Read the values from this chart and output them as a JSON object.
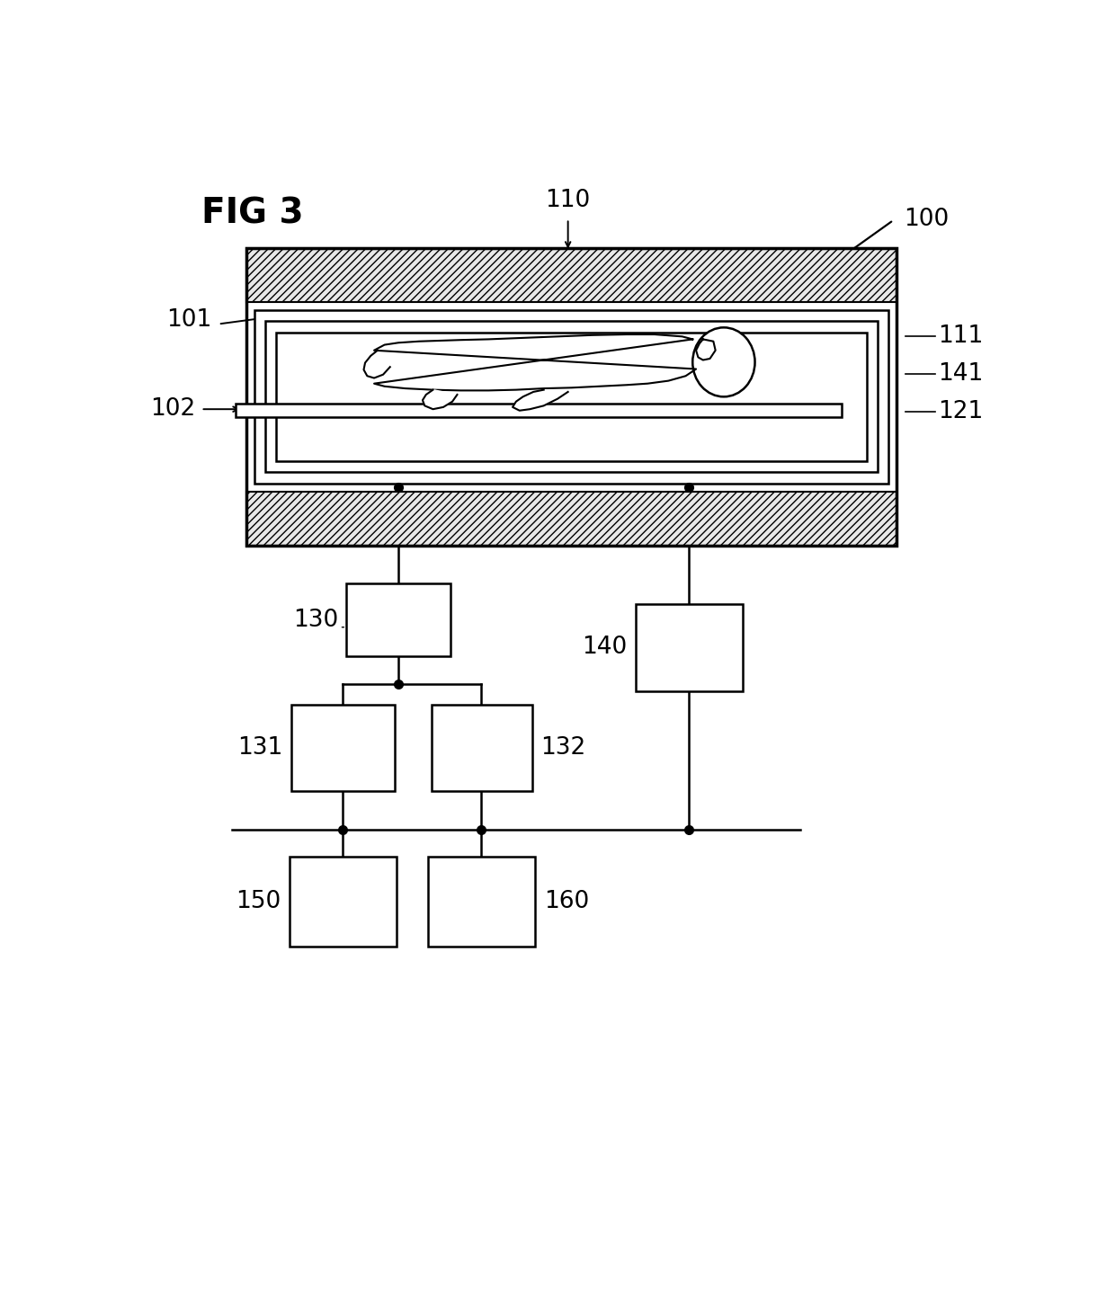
{
  "title": "FIG 3",
  "label_100": "100",
  "label_110": "110",
  "label_101": "101",
  "label_102": "102",
  "label_111": "111",
  "label_141": "141",
  "label_121": "121",
  "label_130": "130",
  "label_131": "131",
  "label_132": "132",
  "label_140": "140",
  "label_150": "150",
  "label_160": "160",
  "bg_color": "#ffffff",
  "line_color": "#000000"
}
